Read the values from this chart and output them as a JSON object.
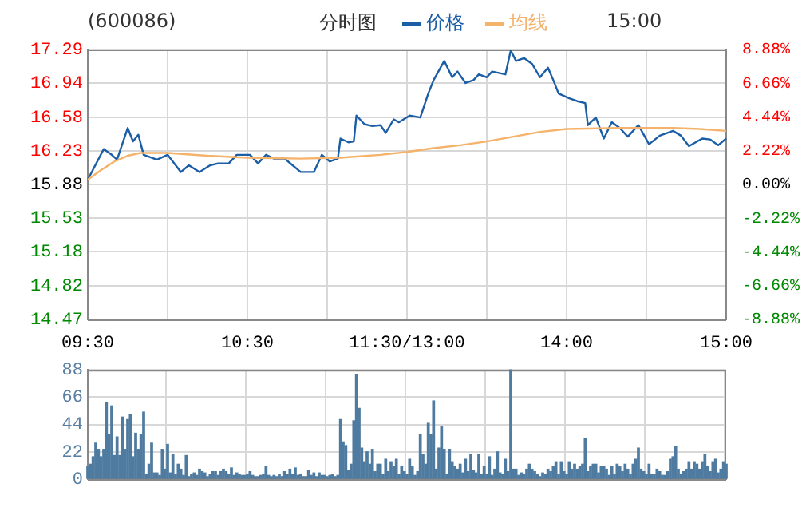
{
  "chart_data": [
    {
      "type": "line",
      "title": "(600086)",
      "subtitle": "分时图",
      "annotations": [
        "15:00"
      ],
      "legend": "top",
      "categories": [
        "09:30",
        null,
        null,
        null,
        null,
        null,
        null,
        null,
        null,
        null,
        null,
        null,
        null,
        null,
        null,
        null,
        null,
        null,
        null,
        null,
        null,
        null,
        null,
        null,
        null,
        null,
        null,
        null,
        null,
        null,
        null,
        null,
        null,
        null,
        null,
        null,
        null,
        null,
        null,
        null,
        null,
        null,
        null,
        null,
        null,
        null,
        null,
        null,
        null,
        null,
        null,
        null,
        null,
        null,
        null,
        null,
        null,
        null,
        null,
        null,
        "10:30",
        null,
        null,
        null,
        null,
        null,
        null,
        null,
        null,
        null,
        null,
        null,
        null,
        null,
        null,
        null,
        null,
        null,
        null,
        null,
        null,
        null,
        null,
        null,
        null,
        null,
        null,
        null,
        null,
        null,
        null,
        null,
        null,
        null,
        null,
        null,
        null,
        null,
        null,
        null,
        null,
        null,
        null,
        null,
        null,
        null,
        null,
        null,
        null,
        null,
        null,
        null,
        null,
        null,
        null,
        null,
        null,
        null,
        null,
        null,
        "11:30/13:00",
        null,
        null,
        null,
        null,
        null,
        null,
        null,
        null,
        null,
        null,
        null,
        null,
        null,
        null,
        null,
        null,
        null,
        null,
        null,
        null,
        null,
        null,
        null,
        null,
        null,
        null,
        null,
        null,
        null,
        null,
        null,
        null,
        null,
        null,
        null,
        null,
        null,
        null,
        null,
        null,
        null,
        null,
        null,
        null,
        null,
        null,
        null,
        null,
        null,
        null,
        null,
        null,
        null,
        null,
        null,
        null,
        null,
        null,
        null,
        "14:00",
        null,
        null,
        null,
        null,
        null,
        null,
        null,
        null,
        null,
        null,
        null,
        null,
        null,
        null,
        null,
        null,
        null,
        null,
        null,
        null,
        null,
        null,
        null,
        null,
        null,
        null,
        null,
        null,
        null,
        null,
        null,
        null,
        null,
        null,
        null,
        null,
        null,
        null,
        null,
        null,
        null,
        null,
        null,
        null,
        null,
        null,
        null,
        null,
        null,
        null,
        null,
        null,
        null,
        null,
        null,
        null,
        null,
        null,
        null,
        "15:00"
      ],
      "series": [
        {
          "name": "价格",
          "color": "#1b5ea6",
          "values": [
            15.93,
            null,
            null,
            null,
            null,
            null,
            16.25,
            null,
            null,
            16.19,
            null,
            16.14,
            null,
            null,
            null,
            16.47,
            null,
            16.33,
            null,
            16.4,
            null,
            16.19,
            null,
            null,
            null,
            null,
            16.14,
            null,
            null,
            null,
            16.19,
            null,
            null,
            null,
            null,
            16.01,
            null,
            null,
            16.08,
            null,
            null,
            null,
            16.01,
            null,
            null,
            null,
            16.08,
            null,
            null,
            16.1,
            null,
            null,
            null,
            16.1,
            null,
            null,
            16.19,
            null,
            null,
            null,
            null,
            16.19,
            null,
            null,
            16.1,
            null,
            null,
            16.19,
            null,
            null,
            16.15,
            null,
            null,
            null,
            16.15,
            null,
            null,
            16.08,
            null,
            null,
            16.01,
            null,
            null,
            null,
            null,
            16.01,
            null,
            null,
            16.19,
            null,
            null,
            16.12,
            null,
            null,
            16.15,
            16.36,
            null,
            null,
            16.32,
            null,
            16.33,
            16.6,
            null,
            null,
            16.51,
            null,
            null,
            16.49,
            null,
            null,
            16.5,
            null,
            16.42,
            null,
            null,
            16.56,
            null,
            16.53,
            null,
            null,
            null,
            16.6,
            null,
            null,
            null,
            16.58,
            null,
            null,
            16.83,
            null,
            16.97,
            null,
            null,
            null,
            17.17,
            null,
            null,
            17.0,
            null,
            17.06,
            null,
            null,
            16.94,
            null,
            null,
            16.97,
            null,
            17.03,
            null,
            null,
            17.0,
            null,
            17.06,
            null,
            null,
            null,
            null,
            17.03,
            null,
            17.28,
            null,
            17.17,
            null,
            null,
            17.2,
            null,
            null,
            17.14,
            null,
            null,
            17.0,
            null,
            null,
            17.1,
            null,
            16.97,
            null,
            16.83,
            null,
            null,
            null,
            16.78,
            null,
            null,
            16.75,
            null,
            null,
            16.73,
            16.5,
            null,
            null,
            16.58,
            null,
            null,
            16.36,
            null,
            null,
            16.53,
            null,
            null,
            16.47,
            null,
            null,
            16.38,
            null,
            null,
            null,
            16.5,
            null,
            null,
            null,
            16.3,
            null,
            null,
            null,
            16.39,
            null,
            null,
            null,
            null,
            16.44,
            null,
            null,
            16.39,
            null,
            null,
            16.28,
            null,
            null,
            null,
            null,
            16.36,
            null,
            null,
            16.35,
            null,
            null,
            16.29,
            null,
            null,
            16.36
          ]
        },
        {
          "name": "均线",
          "color": "#f5b26b",
          "values": [
            15.93,
            null,
            null,
            null,
            null,
            16.03,
            null,
            null,
            null,
            null,
            16.12,
            null,
            null,
            null,
            null,
            16.18,
            null,
            null,
            null,
            null,
            16.21,
            null,
            null,
            null,
            null,
            null,
            null,
            null,
            null,
            null,
            16.21,
            null,
            null,
            null,
            null,
            null,
            null,
            null,
            null,
            null,
            null,
            null,
            null,
            null,
            null,
            16.18,
            null,
            null,
            null,
            null,
            null,
            null,
            null,
            null,
            null,
            null,
            null,
            null,
            null,
            null,
            16.16,
            null,
            null,
            null,
            null,
            null,
            null,
            null,
            null,
            null,
            null,
            null,
            null,
            null,
            null,
            null,
            null,
            null,
            null,
            null,
            16.15,
            null,
            null,
            null,
            null,
            null,
            null,
            null,
            null,
            null,
            null,
            null,
            null,
            null,
            null,
            16.16,
            null,
            null,
            null,
            null,
            16.17,
            null,
            null,
            null,
            null,
            null,
            null,
            null,
            null,
            null,
            16.19,
            null,
            null,
            null,
            null,
            null,
            null,
            null,
            null,
            null,
            16.22,
            null,
            null,
            null,
            null,
            null,
            null,
            null,
            null,
            null,
            16.26,
            null,
            null,
            null,
            null,
            null,
            null,
            null,
            null,
            null,
            16.29,
            null,
            null,
            null,
            null,
            null,
            null,
            null,
            null,
            null,
            16.33,
            null,
            null,
            null,
            null,
            null,
            null,
            null,
            null,
            null,
            16.38,
            null,
            null,
            null,
            null,
            null,
            null,
            null,
            null,
            null,
            16.43,
            null,
            null,
            null,
            null,
            null,
            null,
            null,
            null,
            null,
            16.46,
            null,
            null,
            null,
            null,
            null,
            null,
            null,
            null,
            null,
            null,
            null,
            null,
            null,
            null,
            null,
            null,
            null,
            null,
            null,
            16.47,
            null,
            null,
            null,
            null,
            null,
            null,
            null,
            null,
            null,
            null,
            null,
            null,
            null,
            null,
            null,
            null,
            null,
            null,
            null,
            16.47,
            null,
            null,
            null,
            null,
            null,
            null,
            null,
            null,
            null,
            16.46,
            null,
            null,
            null,
            null,
            null,
            null,
            null,
            null,
            null,
            16.44
          ]
        }
      ],
      "ylim": [
        14.47,
        17.29
      ],
      "yticks": [
        14.47,
        14.82,
        15.18,
        15.53,
        15.88,
        16.23,
        16.58,
        16.94,
        17.29
      ],
      "y2lim": [
        -8.88,
        8.88
      ],
      "y2ticks": [
        {
          "value": -8.88,
          "label": "-8.88%"
        },
        {
          "value": -6.66,
          "label": "-6.66%"
        },
        {
          "value": -4.44,
          "label": "-4.44%"
        },
        {
          "value": -2.22,
          "label": "-2.22%"
        },
        {
          "value": 0,
          "label": "0.00%"
        },
        {
          "value": 2.22,
          "label": "2.22%"
        },
        {
          "value": 4.44,
          "label": "4.44%"
        },
        {
          "value": 6.66,
          "label": "6.66%"
        },
        {
          "value": 8.88,
          "label": "8.88%"
        }
      ],
      "grid": true,
      "marker": "none",
      "line_style": "solid"
    },
    {
      "type": "bar",
      "color": "#4f7ba0",
      "categories": [
        null,
        null,
        null,
        null,
        null,
        null,
        null,
        null,
        null,
        null,
        null,
        null,
        null,
        null,
        null,
        null,
        null,
        null,
        null,
        null,
        null,
        null,
        null,
        null,
        null,
        null,
        null,
        null,
        null,
        null,
        null,
        null,
        null,
        null,
        null,
        null,
        null,
        null,
        null,
        null,
        null,
        null,
        null,
        null,
        null,
        null,
        null,
        null,
        null,
        null,
        null,
        null,
        null,
        null,
        null,
        null,
        null,
        null,
        null,
        null,
        null,
        null,
        null,
        null,
        null,
        null,
        null,
        null,
        null,
        null,
        null,
        null,
        null,
        null,
        null,
        null,
        null,
        null,
        null,
        null,
        null,
        null,
        null,
        null,
        null,
        null,
        null,
        null,
        null,
        null,
        null,
        null,
        null,
        null,
        null,
        null,
        null,
        null,
        null,
        null,
        null,
        null,
        null,
        null,
        null,
        null,
        null,
        null,
        null,
        null,
        null,
        null,
        null,
        null,
        null,
        null,
        null,
        null,
        null,
        null,
        null,
        null,
        null,
        null,
        null,
        null,
        null,
        null,
        null,
        null,
        null,
        null,
        null,
        null,
        null,
        null,
        null,
        null,
        null,
        null,
        null,
        null,
        null,
        null,
        null,
        null,
        null,
        null,
        null,
        null,
        null,
        null,
        null,
        null,
        null,
        null,
        null,
        null,
        null,
        null,
        null,
        null,
        null,
        null,
        null,
        null,
        null,
        null,
        null,
        null,
        null,
        null,
        null,
        null,
        null,
        null,
        null,
        null,
        null,
        null,
        null,
        null,
        null,
        null,
        null,
        null,
        null,
        null,
        null,
        null,
        null,
        null,
        null,
        null,
        null,
        null,
        null,
        null,
        null,
        null,
        null,
        null,
        null,
        null,
        null,
        null,
        null,
        null,
        null,
        null,
        null,
        null,
        null,
        null,
        null,
        null,
        null,
        null,
        null,
        null,
        null,
        null,
        null,
        null,
        null,
        null,
        null,
        null,
        null,
        null,
        null,
        null,
        null,
        null,
        null,
        null,
        null,
        null,
        null,
        null,
        null
      ],
      "values": [
        10,
        12,
        18,
        29,
        24,
        18,
        24,
        62,
        36,
        59,
        19,
        34,
        19,
        50,
        24,
        48,
        52,
        18,
        37,
        24,
        36,
        54,
        4,
        12,
        29,
        5,
        5,
        3,
        24,
        8,
        28,
        5,
        20,
        4,
        12,
        8,
        3,
        19,
        2,
        4,
        5,
        3,
        8,
        6,
        5,
        2,
        4,
        6,
        6,
        3,
        6,
        8,
        6,
        4,
        9,
        3,
        5,
        4,
        3,
        3,
        4,
        6,
        3,
        2,
        2,
        3,
        4,
        10,
        3,
        2,
        3,
        2,
        4,
        2,
        6,
        4,
        8,
        4,
        9,
        3,
        4,
        2,
        2,
        7,
        3,
        5,
        2,
        5,
        3,
        3,
        2,
        3,
        4,
        2,
        3,
        48,
        30,
        27,
        7,
        12,
        47,
        84,
        57,
        25,
        14,
        22,
        12,
        24,
        6,
        12,
        12,
        4,
        16,
        6,
        14,
        10,
        16,
        4,
        10,
        6,
        4,
        16,
        10,
        3,
        6,
        36,
        20,
        12,
        45,
        36,
        63,
        8,
        25,
        42,
        24,
        4,
        24,
        14,
        10,
        8,
        12,
        5,
        16,
        6,
        20,
        7,
        5,
        20,
        4,
        10,
        4,
        18,
        3,
        8,
        22,
        5,
        4,
        16,
        6,
        88,
        8,
        8,
        3,
        5,
        4,
        8,
        12,
        8,
        6,
        4,
        2,
        5,
        4,
        8,
        6,
        10,
        14,
        4,
        14,
        6,
        4,
        14,
        8,
        12,
        8,
        10,
        12,
        33,
        6,
        10,
        12,
        12,
        5,
        10,
        10,
        8,
        3,
        10,
        4,
        12,
        10,
        6,
        12,
        8,
        4,
        12,
        16,
        25,
        8,
        6,
        4,
        12,
        4,
        4,
        8,
        6,
        3,
        3,
        6,
        16,
        18,
        26,
        8,
        4,
        6,
        8,
        14,
        8,
        14,
        12,
        8,
        14,
        20,
        10,
        6,
        14,
        16,
        5,
        8,
        14,
        12
      ],
      "ylim": [
        0,
        88
      ],
      "yticks": [
        0,
        22,
        44,
        66,
        88
      ],
      "grid": true,
      "tick_labels": "y"
    }
  ]
}
